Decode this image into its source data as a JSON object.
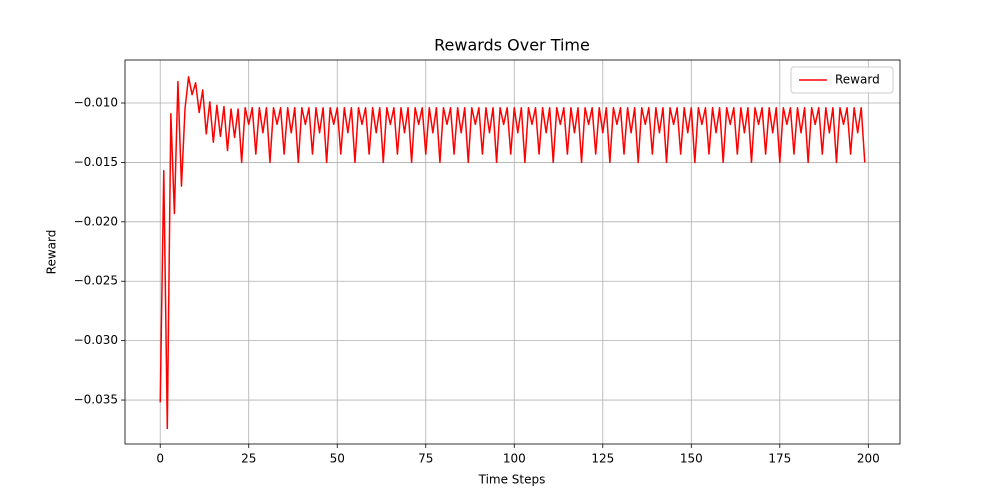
{
  "chart_data": {
    "type": "line",
    "title": "Rewards Over Time",
    "x_label": "Time Steps",
    "y_label": "Reward",
    "x": [
      0,
      1,
      2,
      3,
      4,
      5,
      6,
      7,
      8,
      9,
      10,
      11,
      12,
      13,
      14,
      15,
      16,
      17,
      18,
      19,
      20,
      21,
      22,
      23,
      24,
      25,
      26,
      27,
      28,
      29,
      30,
      31,
      32,
      33,
      34,
      35,
      36,
      37,
      38,
      39,
      40,
      41,
      42,
      43,
      44,
      45,
      46,
      47,
      48,
      49,
      50,
      51,
      52,
      53,
      54,
      55,
      56,
      57,
      58,
      59,
      60,
      61,
      62,
      63,
      64,
      65,
      66,
      67,
      68,
      69,
      70,
      71,
      72,
      73,
      74,
      75,
      76,
      77,
      78,
      79,
      80,
      81,
      82,
      83,
      84,
      85,
      86,
      87,
      88,
      89,
      90,
      91,
      92,
      93,
      94,
      95,
      96,
      97,
      98,
      99,
      100,
      101,
      102,
      103,
      104,
      105,
      106,
      107,
      108,
      109,
      110,
      111,
      112,
      113,
      114,
      115,
      116,
      117,
      118,
      119,
      120,
      121,
      122,
      123,
      124,
      125,
      126,
      127,
      128,
      129,
      130,
      131,
      132,
      133,
      134,
      135,
      136,
      137,
      138,
      139,
      140,
      141,
      142,
      143,
      144,
      145,
      146,
      147,
      148,
      149,
      150,
      151,
      152,
      153,
      154,
      155,
      156,
      157,
      158,
      159,
      160,
      161,
      162,
      163,
      164,
      165,
      166,
      167,
      168,
      169,
      170,
      171,
      172,
      173,
      174,
      175,
      176,
      177,
      178,
      179,
      180,
      181,
      182,
      183,
      184,
      185,
      186,
      187,
      188,
      189,
      190,
      191,
      192,
      193,
      194,
      195,
      196,
      197,
      198,
      199
    ],
    "series": [
      {
        "name": "Reward",
        "color": "#ff0000",
        "values": [
          -0.0352,
          -0.0157,
          -0.0374,
          -0.0109,
          -0.0193,
          -0.0082,
          -0.017,
          -0.0105,
          -0.0078,
          -0.0093,
          -0.0083,
          -0.0108,
          -0.0089,
          -0.0126,
          -0.0099,
          -0.0133,
          -0.0102,
          -0.0128,
          -0.0103,
          -0.014,
          -0.0105,
          -0.0129,
          -0.0105,
          -0.015,
          -0.0104,
          -0.0118,
          -0.0104,
          -0.0143,
          -0.0104,
          -0.0125,
          -0.0104,
          -0.015,
          -0.0104,
          -0.0118,
          -0.0104,
          -0.0143,
          -0.0104,
          -0.0125,
          -0.0104,
          -0.015,
          -0.0104,
          -0.0118,
          -0.0104,
          -0.0143,
          -0.0104,
          -0.0125,
          -0.0104,
          -0.015,
          -0.0104,
          -0.0118,
          -0.0104,
          -0.0143,
          -0.0104,
          -0.0125,
          -0.0104,
          -0.015,
          -0.0104,
          -0.0118,
          -0.0104,
          -0.0143,
          -0.0104,
          -0.0125,
          -0.0104,
          -0.015,
          -0.0104,
          -0.0118,
          -0.0104,
          -0.0143,
          -0.0104,
          -0.0125,
          -0.0104,
          -0.015,
          -0.0104,
          -0.0118,
          -0.0104,
          -0.0143,
          -0.0104,
          -0.0125,
          -0.0104,
          -0.015,
          -0.0104,
          -0.0118,
          -0.0104,
          -0.0143,
          -0.0104,
          -0.0125,
          -0.0104,
          -0.015,
          -0.0104,
          -0.0118,
          -0.0104,
          -0.0143,
          -0.0104,
          -0.0125,
          -0.0104,
          -0.015,
          -0.0104,
          -0.0118,
          -0.0104,
          -0.0143,
          -0.0104,
          -0.0125,
          -0.0104,
          -0.015,
          -0.0104,
          -0.0118,
          -0.0104,
          -0.0143,
          -0.0104,
          -0.0125,
          -0.0104,
          -0.015,
          -0.0104,
          -0.0118,
          -0.0104,
          -0.0143,
          -0.0104,
          -0.0125,
          -0.0104,
          -0.015,
          -0.0104,
          -0.0118,
          -0.0104,
          -0.0143,
          -0.0104,
          -0.0125,
          -0.0104,
          -0.015,
          -0.0104,
          -0.0118,
          -0.0104,
          -0.0143,
          -0.0104,
          -0.0125,
          -0.0104,
          -0.015,
          -0.0104,
          -0.0118,
          -0.0104,
          -0.0143,
          -0.0104,
          -0.0125,
          -0.0104,
          -0.015,
          -0.0104,
          -0.0118,
          -0.0104,
          -0.0143,
          -0.0104,
          -0.0125,
          -0.0104,
          -0.015,
          -0.0104,
          -0.0118,
          -0.0104,
          -0.0143,
          -0.0104,
          -0.0125,
          -0.0104,
          -0.015,
          -0.0104,
          -0.0118,
          -0.0104,
          -0.0143,
          -0.0104,
          -0.0125,
          -0.0104,
          -0.015,
          -0.0104,
          -0.0118,
          -0.0104,
          -0.0143,
          -0.0104,
          -0.0125,
          -0.0104,
          -0.015,
          -0.0104,
          -0.0118,
          -0.0104,
          -0.0143,
          -0.0104,
          -0.0125,
          -0.0104,
          -0.015,
          -0.0104,
          -0.0118,
          -0.0104,
          -0.0143,
          -0.0104,
          -0.0125,
          -0.0104,
          -0.015,
          -0.0104,
          -0.0118,
          -0.0104,
          -0.0143,
          -0.0104,
          -0.0125,
          -0.0104,
          -0.015
        ]
      }
    ],
    "xlim": [
      -9.95,
      208.95
    ],
    "xticks": [
      0,
      25,
      50,
      75,
      100,
      125,
      150,
      175,
      200
    ],
    "ylim": [
      -0.0387,
      -0.00638
    ],
    "yticks": [
      {
        "value": -0.035,
        "label": "−0.035"
      },
      {
        "value": -0.03,
        "label": "−0.030"
      },
      {
        "value": -0.025,
        "label": "−0.025"
      },
      {
        "value": -0.02,
        "label": "−0.020"
      },
      {
        "value": -0.015,
        "label": "−0.015"
      },
      {
        "value": -0.01,
        "label": "−0.010"
      }
    ],
    "grid": true,
    "legend": "upper right"
  }
}
